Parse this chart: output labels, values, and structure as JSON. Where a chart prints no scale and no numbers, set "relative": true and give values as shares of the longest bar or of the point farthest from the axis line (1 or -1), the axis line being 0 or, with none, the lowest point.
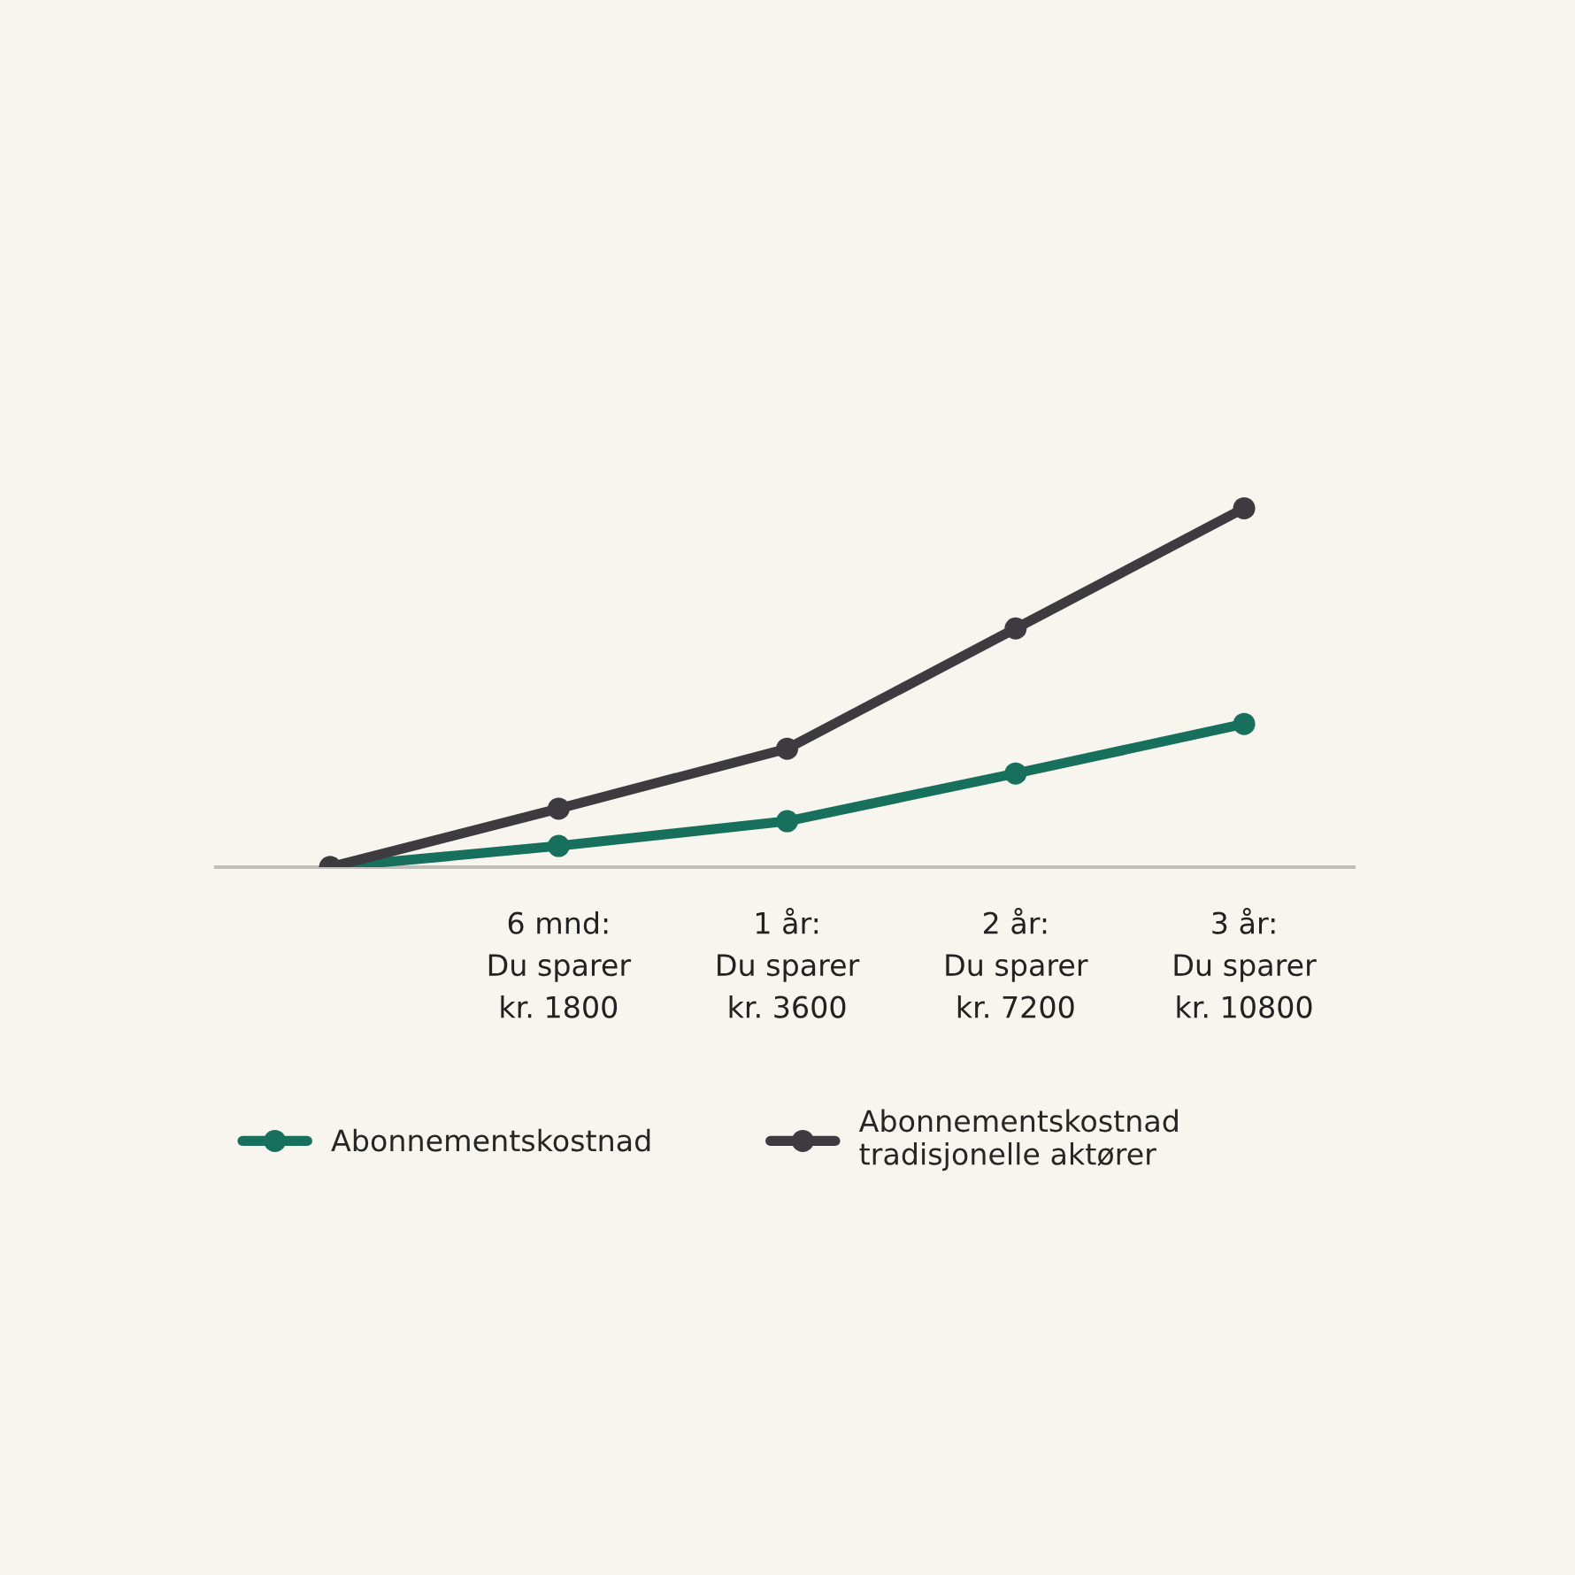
{
  "chart_data": {
    "type": "line",
    "relative": true,
    "categories": [
      null,
      "6 mnd:\nDu sparer\nkr. 1800",
      "1 år:\nDu sparer\nkr. 3600",
      "2 år:\nDu sparer\nkr. 7200",
      "3 år:\nDu sparer\nkr. 10800"
    ],
    "series": [
      {
        "name": "Abonnementskostnad",
        "color": "#17705c",
        "values": [
          0,
          0.059,
          0.128,
          0.261,
          0.399
        ]
      },
      {
        "name": "Abonnementskostnad\ntradisjonelle aktører",
        "color": "#3d3b40",
        "values": [
          0,
          0.163,
          0.33,
          0.665,
          1
        ]
      }
    ],
    "marker": "circle",
    "line_style": "solid",
    "legend": "bottom",
    "grid": false
  }
}
